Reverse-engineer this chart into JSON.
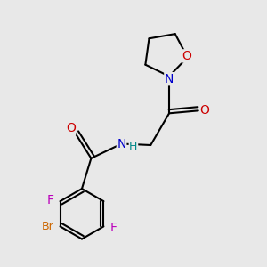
{
  "background_color": "#e8e8e8",
  "atom_colors": {
    "C": "#000000",
    "N": "#0000cc",
    "O": "#cc0000",
    "F": "#bb00bb",
    "Br": "#cc6600",
    "H": "#008888"
  },
  "bond_color": "#000000",
  "bond_width": 1.5,
  "font_size_atom": 9
}
